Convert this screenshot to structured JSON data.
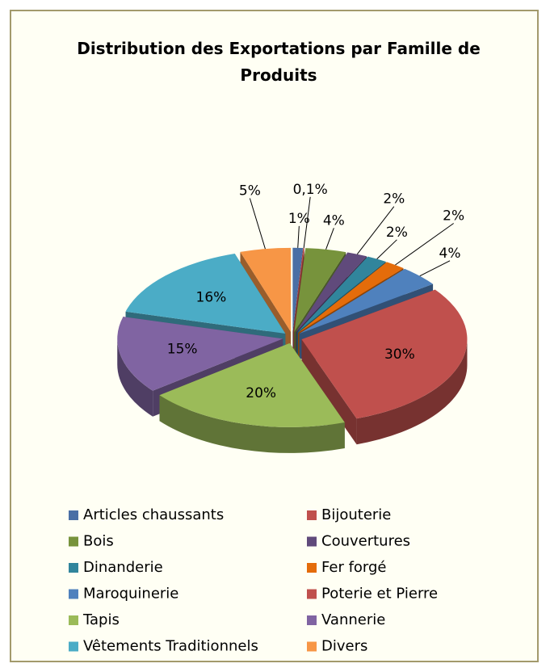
{
  "chart_data": {
    "type": "pie3d",
    "title": "Distribution des Exportations par Famille de Produits",
    "categories": [
      "Articles chaussants",
      "Bijouterie",
      "Bois",
      "Couvertures",
      "Dinanderie",
      "Fer forgé",
      "Maroquinerie",
      "Poterie et Pierre",
      "Tapis",
      "Vannerie",
      "Vêtements Traditionnels",
      "Divers"
    ],
    "values": [
      1,
      0.1,
      4,
      2,
      2,
      2,
      4,
      30,
      20,
      15,
      16,
      5
    ],
    "value_labels": [
      "1%",
      "0,1%",
      "4%",
      "2%",
      "2%",
      "2%",
      "4%",
      "30%",
      "20%",
      "15%",
      "16%",
      "5%"
    ],
    "colors": [
      "#4a6fa5",
      "#c0504d",
      "#77933c",
      "#604a7b",
      "#31859c",
      "#e46c0a",
      "#4f81bd",
      "#c0504d",
      "#9bbb59",
      "#8064a2",
      "#4bacc6",
      "#f79646"
    ],
    "legend": "bottom"
  }
}
